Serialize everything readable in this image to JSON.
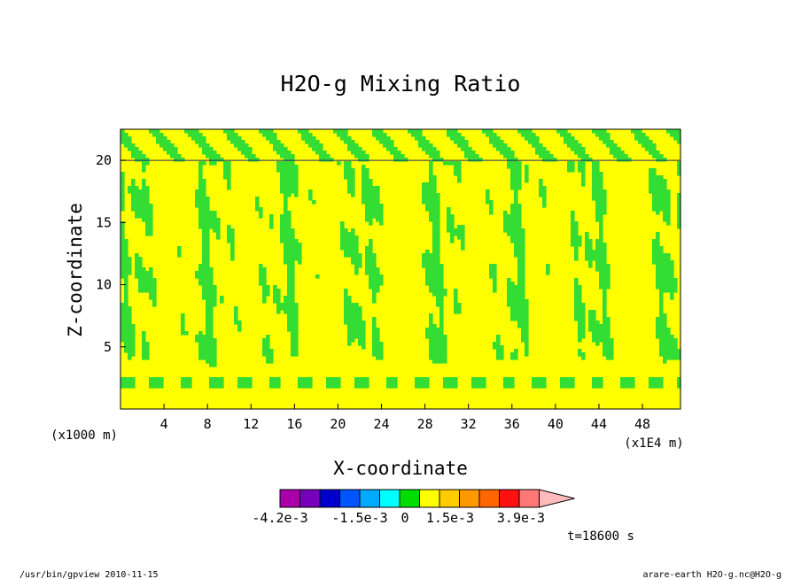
{
  "chart_data": {
    "type": "contour",
    "title": "H2O-g Mixing Ratio",
    "xlabel": "X-coordinate",
    "ylabel": "Z-coordinate",
    "x_units_left": "(x1000 m)",
    "x_units_right": "(x1E4 m)",
    "x_ticks": [
      "4",
      "8",
      "12",
      "16",
      "20",
      "24",
      "28",
      "32",
      "36",
      "40",
      "44",
      "48"
    ],
    "y_ticks": [
      "5",
      "10",
      "15",
      "20"
    ],
    "xlim": [
      0,
      51.5
    ],
    "ylim": [
      0,
      22.5
    ],
    "colorbar": {
      "colors": [
        "#aa00aa",
        "#7700bb",
        "#0000cc",
        "#0055ff",
        "#00aaff",
        "#00ffff",
        "#00dd00",
        "#ffff00",
        "#ffcc00",
        "#ff9900",
        "#ff6600",
        "#ff1111",
        "#ff7777",
        "#ffbbbb"
      ],
      "labels": [
        "-4.2e-3",
        "-1.5e-3",
        "0",
        "1.5e-3",
        "3.9e-3"
      ]
    },
    "fill_low": "#ffff00",
    "fill_high": "#33dd33",
    "contour_line": "#2a2a66",
    "time_label": "t=18600 s"
  },
  "footer": {
    "left": "/usr/bin/gpview   2010-11-15",
    "right": "arare-earth_H2O-g.nc@H2O-g"
  }
}
